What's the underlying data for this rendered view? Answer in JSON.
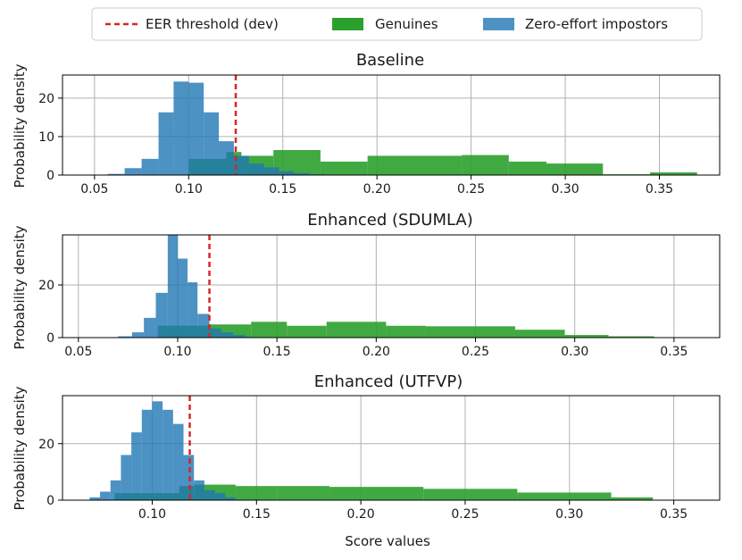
{
  "legend": {
    "threshold_label": "EER threshold (dev)",
    "genuine_label": "Genuines",
    "impostor_label": "Zero-effort impostors"
  },
  "colors": {
    "genuine": "#2ca02c",
    "impostor": "#1f77b4",
    "threshold": "#d62728",
    "grid": "#b0b0b0"
  },
  "chart_data": [
    {
      "type": "histogram",
      "title": "Baseline",
      "xlabel": "",
      "ylabel": "Probability density",
      "xlim": [
        0.033,
        0.382
      ],
      "ylim": [
        0,
        26
      ],
      "xticks": [
        0.05,
        0.1,
        0.15,
        0.2,
        0.25,
        0.3,
        0.35
      ],
      "xtick_labels": [
        "0.05",
        "0.10",
        "0.15",
        "0.20",
        "0.25",
        "0.30",
        "0.35"
      ],
      "yticks": [
        0,
        10,
        20
      ],
      "threshold": 0.125,
      "genuine_bins": [
        [
          0.1,
          0.12,
          4.2
        ],
        [
          0.12,
          0.128,
          6.0
        ],
        [
          0.128,
          0.145,
          5.0
        ],
        [
          0.145,
          0.17,
          6.5
        ],
        [
          0.17,
          0.195,
          3.5
        ],
        [
          0.195,
          0.245,
          5.0
        ],
        [
          0.245,
          0.27,
          5.2
        ],
        [
          0.27,
          0.29,
          3.5
        ],
        [
          0.29,
          0.32,
          3.0
        ],
        [
          0.32,
          0.345,
          0.2
        ],
        [
          0.345,
          0.37,
          0.7
        ]
      ],
      "impostor_bins": [
        [
          0.057,
          0.066,
          0.3
        ],
        [
          0.066,
          0.075,
          1.8
        ],
        [
          0.075,
          0.084,
          4.2
        ],
        [
          0.084,
          0.092,
          16.3
        ],
        [
          0.092,
          0.1,
          24.3
        ],
        [
          0.1,
          0.108,
          24.0
        ],
        [
          0.108,
          0.116,
          16.3
        ],
        [
          0.116,
          0.124,
          8.8
        ],
        [
          0.124,
          0.132,
          5.0
        ],
        [
          0.132,
          0.14,
          3.0
        ],
        [
          0.14,
          0.148,
          2.0
        ],
        [
          0.148,
          0.156,
          1.0
        ],
        [
          0.156,
          0.164,
          0.5
        ],
        [
          0.164,
          0.172,
          0.2
        ]
      ]
    },
    {
      "type": "histogram",
      "title": "Enhanced (SDUMLA)",
      "xlabel": "",
      "ylabel": "Probability density",
      "xlim": [
        0.042,
        0.373
      ],
      "ylim": [
        0,
        39
      ],
      "xticks": [
        0.05,
        0.1,
        0.15,
        0.2,
        0.25,
        0.3,
        0.35
      ],
      "xtick_labels": [
        "0.05",
        "0.10",
        "0.15",
        "0.20",
        "0.25",
        "0.30",
        "0.35"
      ],
      "yticks": [
        0,
        20
      ],
      "threshold": 0.116,
      "genuine_bins": [
        [
          0.09,
          0.116,
          4.5
        ],
        [
          0.116,
          0.137,
          5.0
        ],
        [
          0.137,
          0.155,
          6.0
        ],
        [
          0.155,
          0.175,
          4.5
        ],
        [
          0.175,
          0.205,
          6.0
        ],
        [
          0.205,
          0.225,
          4.5
        ],
        [
          0.225,
          0.27,
          4.3
        ],
        [
          0.27,
          0.295,
          3.0
        ],
        [
          0.295,
          0.317,
          1.0
        ],
        [
          0.317,
          0.34,
          0.5
        ]
      ],
      "impostor_bins": [
        [
          0.07,
          0.077,
          0.5
        ],
        [
          0.077,
          0.083,
          2.0
        ],
        [
          0.083,
          0.089,
          7.5
        ],
        [
          0.089,
          0.095,
          17.0
        ],
        [
          0.095,
          0.1,
          39.0
        ],
        [
          0.1,
          0.105,
          30.0
        ],
        [
          0.105,
          0.11,
          21.0
        ],
        [
          0.11,
          0.116,
          9.0
        ],
        [
          0.116,
          0.122,
          3.5
        ],
        [
          0.122,
          0.128,
          2.0
        ],
        [
          0.128,
          0.134,
          1.0
        ],
        [
          0.134,
          0.14,
          0.3
        ]
      ]
    },
    {
      "type": "histogram",
      "title": "Enhanced (UTFVP)",
      "xlabel": "Score values",
      "ylabel": "Probability density",
      "xlim": [
        0.057,
        0.372
      ],
      "ylim": [
        0,
        37
      ],
      "xticks": [
        0.1,
        0.15,
        0.2,
        0.25,
        0.3,
        0.35
      ],
      "xtick_labels": [
        "0.10",
        "0.15",
        "0.20",
        "0.25",
        "0.30",
        "0.35"
      ],
      "yticks": [
        0,
        20
      ],
      "threshold": 0.118,
      "genuine_bins": [
        [
          0.082,
          0.113,
          2.5
        ],
        [
          0.113,
          0.12,
          5.0
        ],
        [
          0.12,
          0.14,
          5.5
        ],
        [
          0.14,
          0.16,
          5.0
        ],
        [
          0.16,
          0.185,
          5.0
        ],
        [
          0.185,
          0.23,
          4.7
        ],
        [
          0.23,
          0.275,
          4.0
        ],
        [
          0.275,
          0.32,
          2.7
        ],
        [
          0.32,
          0.34,
          1.0
        ]
      ],
      "impostor_bins": [
        [
          0.07,
          0.075,
          1.0
        ],
        [
          0.075,
          0.08,
          3.0
        ],
        [
          0.08,
          0.085,
          7.0
        ],
        [
          0.085,
          0.09,
          16.0
        ],
        [
          0.09,
          0.095,
          24.0
        ],
        [
          0.095,
          0.1,
          32.0
        ],
        [
          0.1,
          0.105,
          35.0
        ],
        [
          0.105,
          0.11,
          32.0
        ],
        [
          0.11,
          0.115,
          27.0
        ],
        [
          0.115,
          0.12,
          16.0
        ],
        [
          0.12,
          0.125,
          7.0
        ],
        [
          0.125,
          0.13,
          3.5
        ],
        [
          0.13,
          0.135,
          2.5
        ],
        [
          0.135,
          0.14,
          1.0
        ]
      ]
    }
  ]
}
